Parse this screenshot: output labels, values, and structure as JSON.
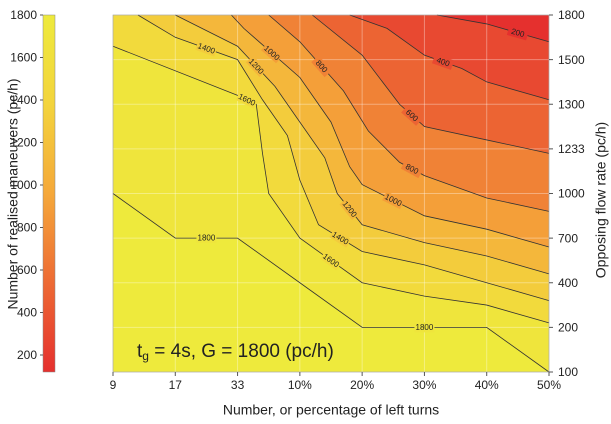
{
  "chart_data": {
    "type": "contour",
    "categories": [
      "9",
      "17",
      "33",
      "10%",
      "20%",
      "30%",
      "40%",
      "50%"
    ],
    "y2categories": [
      "100",
      "200",
      "400",
      "700",
      "1000",
      "1233",
      "1300",
      "1500",
      "1800"
    ],
    "xlabel": "Number, or percentage of left turns",
    "y2label": "Opposing flow rate (pc/h)",
    "grid": true,
    "annotation": {
      "text": "t",
      "subscript": "g",
      "after": " = 4s, G = 1800 (pc/h)"
    },
    "colorbar": {
      "label": "Number of realised maneuvers (pc/h)",
      "lim": [
        120,
        1800
      ],
      "ticks": [
        200,
        400,
        600,
        800,
        1000,
        1200,
        1400,
        1600,
        1800
      ],
      "colors": [
        "#e5302e",
        "#ed6a34",
        "#f5a83a",
        "#f3d43c",
        "#eeea3c"
      ]
    },
    "contours": [
      {
        "level": 1800,
        "x": [
          0,
          1,
          2,
          3,
          4,
          6,
          7
        ],
        "y": [
          4.0,
          3.0,
          3.0,
          2.0,
          1.0,
          1.0,
          0
        ]
      },
      {
        "level": 1600,
        "x": [
          0,
          2,
          2.3,
          2.4,
          2.5,
          3,
          4,
          5,
          6,
          7
        ],
        "y": [
          7.3,
          6.2,
          6.0,
          4.9,
          4.0,
          3.0,
          2.0,
          1.7,
          1.5,
          1.1
        ]
      },
      {
        "level": 1400,
        "x": [
          0.4,
          1,
          2,
          2.4,
          2.8,
          3,
          3.3,
          4,
          5,
          6,
          7
        ],
        "y": [
          8,
          7.5,
          7.0,
          6.1,
          5.3,
          4.3,
          3.3,
          2.7,
          2.4,
          2.0,
          1.6
        ]
      },
      {
        "level": 1200,
        "x": [
          1,
          2,
          2.6,
          3,
          3.4,
          3.6,
          4,
          5,
          6,
          7
        ],
        "y": [
          8,
          7.3,
          6.4,
          5.6,
          4.8,
          4.0,
          3.3,
          2.9,
          2.6,
          2.2
        ]
      },
      {
        "level": 1000,
        "x": [
          1.9,
          2.1,
          3,
          3.5,
          3.8,
          4,
          5,
          6,
          7
        ],
        "y": [
          8,
          7.7,
          6.6,
          5.6,
          4.6,
          4.2,
          3.5,
          3.2,
          2.8
        ]
      },
      {
        "level": 800,
        "x": [
          2.5,
          3,
          3.7,
          4.1,
          4.6,
          5,
          6,
          7
        ],
        "y": [
          8,
          7.4,
          6.3,
          5.4,
          4.7,
          4.4,
          3.9,
          3.6
        ]
      },
      {
        "level": 600,
        "x": [
          3.2,
          4,
          4.6,
          5,
          6,
          7
        ],
        "y": [
          8,
          7.1,
          6.0,
          5.5,
          5.2,
          4.9
        ]
      },
      {
        "level": 400,
        "x": [
          3.8,
          4.4,
          5,
          5.6,
          6,
          7
        ],
        "y": [
          8,
          7.7,
          7.1,
          6.8,
          6.5,
          6.1
        ]
      },
      {
        "level": 200,
        "x": [
          5.2,
          6,
          7
        ],
        "y": [
          8,
          7.8,
          7.4
        ]
      }
    ]
  }
}
